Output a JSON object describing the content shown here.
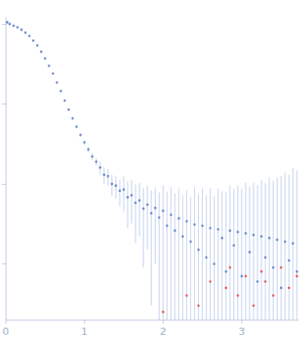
{
  "chart_data": {
    "type": "scatter",
    "log": "y",
    "grid": false,
    "tick_labels": "x",
    "xlim": [
      0,
      3.72
    ],
    "xticks": [
      0,
      1,
      2,
      3
    ],
    "ylim": [
      0.0002,
      1.2
    ],
    "yticks": [
      0.001,
      0.01,
      0.1,
      1
    ],
    "series": [
      {
        "color": "#3a62b8",
        "marker": "circle",
        "x": [
          0.02,
          0.05,
          0.1,
          0.15,
          0.2,
          0.25,
          0.3,
          0.35,
          0.4,
          0.45,
          0.5,
          0.55,
          0.6,
          0.65,
          0.7,
          0.75,
          0.8,
          0.85,
          0.9,
          0.95,
          1.0,
          1.05,
          1.1,
          1.15,
          1.2,
          1.25,
          1.3,
          1.35,
          1.4,
          1.45,
          1.5,
          1.55,
          1.6,
          1.65,
          1.7,
          1.75,
          1.8,
          1.85,
          1.9,
          1.95,
          2.0,
          2.05,
          2.1,
          2.15,
          2.2,
          2.25,
          2.3,
          2.35,
          2.4,
          2.45,
          2.5,
          2.55,
          2.6,
          2.65,
          2.7,
          2.75,
          2.8,
          2.85,
          2.9,
          2.95,
          3.0,
          3.05,
          3.1,
          3.15,
          3.2,
          3.25,
          3.3,
          3.35,
          3.4,
          3.45,
          3.5,
          3.55,
          3.6,
          3.65,
          3.7
        ],
        "values": [
          1.05,
          1.0,
          0.95,
          0.91,
          0.85,
          0.78,
          0.71,
          0.62,
          0.54,
          0.45,
          0.37,
          0.3,
          0.24,
          0.185,
          0.145,
          0.11,
          0.085,
          0.066,
          0.052,
          0.041,
          0.033,
          0.027,
          0.022,
          0.019,
          0.016,
          0.013,
          0.0125,
          0.01,
          0.0095,
          0.0082,
          0.0085,
          0.0068,
          0.0072,
          0.0058,
          0.0062,
          0.0049,
          0.0055,
          0.0043,
          0.005,
          0.0038,
          0.0046,
          0.003,
          0.0041,
          0.0026,
          0.0037,
          0.0022,
          0.0034,
          0.0019,
          0.0031,
          0.0015,
          0.003,
          0.0012,
          0.0028,
          0.001,
          0.0027,
          0.0021,
          0.0008,
          0.0026,
          0.0017,
          0.0025,
          0.0007,
          0.0024,
          0.0014,
          0.0023,
          0.0006,
          0.0022,
          0.0012,
          0.0021,
          0.0009,
          0.002,
          0.0005,
          0.0019,
          0.0011,
          0.0018,
          0.0008
        ],
        "errors": [
          0.05,
          0.02,
          0.01,
          0.01,
          0.01,
          0.01,
          0.01,
          0.01,
          0.01,
          0.01,
          0.005,
          0.005,
          0.004,
          0.003,
          0.003,
          0.002,
          0.002,
          0.002,
          0.002,
          0.002,
          0.002,
          0.002,
          0.002,
          0.002,
          0.003,
          0.003,
          0.003,
          0.003,
          0.003,
          0.003,
          0.004,
          0.004,
          0.004,
          0.004,
          0.004,
          0.004,
          0.004,
          0.004,
          0.004,
          0.004,
          0.005,
          0.005,
          0.005,
          0.005,
          0.005,
          0.005,
          0.005,
          0.005,
          0.006,
          0.006,
          0.006,
          0.006,
          0.006,
          0.006,
          0.006,
          0.006,
          0.007,
          0.007,
          0.007,
          0.007,
          0.008,
          0.008,
          0.008,
          0.008,
          0.009,
          0.009,
          0.009,
          0.01,
          0.01,
          0.01,
          0.012,
          0.012,
          0.012,
          0.014,
          0.014
        ]
      },
      {
        "color": "#e02020",
        "marker": "circle",
        "x": [
          2.0,
          2.3,
          2.45,
          2.6,
          2.8,
          2.85,
          2.95,
          3.05,
          3.15,
          3.25,
          3.3,
          3.4,
          3.5,
          3.6,
          3.7
        ],
        "values": [
          0.00025,
          0.0004,
          0.0003,
          0.0006,
          0.0005,
          0.0009,
          0.0004,
          0.0007,
          0.0003,
          0.0008,
          0.0006,
          0.0004,
          0.0009,
          0.0005,
          0.0007
        ]
      }
    ]
  }
}
